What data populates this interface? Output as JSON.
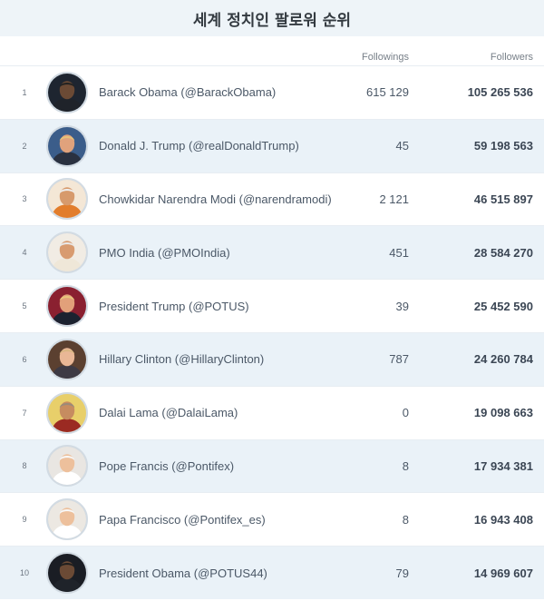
{
  "title": "세계 정치인 팔로워 순위",
  "columns": {
    "following": "Followings",
    "followers": "Followers"
  },
  "rows": [
    {
      "rank": "1",
      "name": "Barack Obama (@BarackObama)",
      "following": "615 129",
      "followers": "105 265 536",
      "skin": "#6b4a35",
      "bg": "#1e2530",
      "suit": "#1f232a",
      "hair": "#222222"
    },
    {
      "rank": "2",
      "name": "Donald J. Trump (@realDonaldTrump)",
      "following": "45",
      "followers": "59 198 563",
      "skin": "#e0a27c",
      "bg": "#3b5d8a",
      "suit": "#2a3140",
      "hair": "#e6c27a"
    },
    {
      "rank": "3",
      "name": "Chowkidar Narendra Modi (@narendramodi)",
      "following": "2 121",
      "followers": "46 515 897",
      "skin": "#d79a6c",
      "bg": "#f4e7d6",
      "suit": "#e27d2c",
      "hair": "#eeeeee"
    },
    {
      "rank": "4",
      "name": "PMO India (@PMOIndia)",
      "following": "451",
      "followers": "28 584 270",
      "skin": "#d89b70",
      "bg": "#f1ece4",
      "suit": "#efe7d8",
      "hair": "#e9e9e9"
    },
    {
      "rank": "5",
      "name": "President Trump (@POTUS)",
      "following": "39",
      "followers": "25 452 590",
      "skin": "#e2a07a",
      "bg": "#8a2030",
      "suit": "#1c2230",
      "hair": "#e8c57c"
    },
    {
      "rank": "6",
      "name": "Hillary Clinton (@HillaryClinton)",
      "following": "787",
      "followers": "24 260 784",
      "skin": "#e9b796",
      "bg": "#5b4030",
      "suit": "#3d3a44",
      "hair": "#d9b682"
    },
    {
      "rank": "7",
      "name": "Dalai Lama (@DalaiLama)",
      "following": "0",
      "followers": "19 098 663",
      "skin": "#c68c60",
      "bg": "#e8cf6a",
      "suit": "#9b2a22",
      "hair": "#9a8a7a"
    },
    {
      "rank": "8",
      "name": "Pope Francis (@Pontifex)",
      "following": "8",
      "followers": "17 934 381",
      "skin": "#edc09c",
      "bg": "#e9e6e2",
      "suit": "#ffffff",
      "hair": "#f8f8f8"
    },
    {
      "rank": "9",
      "name": "Papa Francisco (@Pontifex_es)",
      "following": "8",
      "followers": "16 943 408",
      "skin": "#edc09c",
      "bg": "#ece8e2",
      "suit": "#ffffff",
      "hair": "#f8f8f8"
    },
    {
      "rank": "10",
      "name": "President Obama (@POTUS44)",
      "following": "79",
      "followers": "14 969 607",
      "skin": "#6b4a35",
      "bg": "#1a1d24",
      "suit": "#1f232a",
      "hair": "#1f1f1f"
    }
  ]
}
